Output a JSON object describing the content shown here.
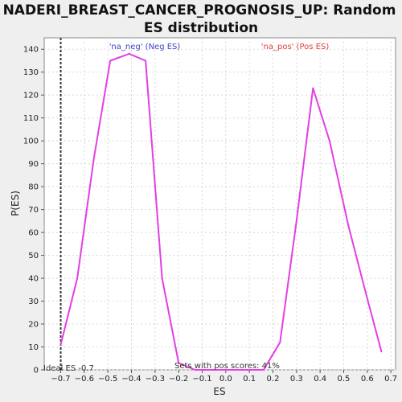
{
  "colors": {
    "series": "#e43ee4",
    "neg_label": "#4040d0",
    "pos_label": "#e04040",
    "marker": "#333333",
    "background": "#efefef",
    "plot_bg": "#ffffff"
  },
  "chart_data": {
    "type": "line",
    "title_lines": [
      "NADERI_BREAST_CANCER_PROGNOSIS_UP: Random",
      "ES distribution"
    ],
    "xlabel": "ES",
    "ylabel": "P(ES)",
    "xlim": [
      -0.77,
      0.72
    ],
    "ylim": [
      0,
      145
    ],
    "grid": true,
    "x_ticks": [
      -0.7,
      -0.6,
      -0.5,
      -0.4,
      -0.3,
      -0.2,
      -0.1,
      0.0,
      0.1,
      0.2,
      0.3,
      0.4,
      0.5,
      0.6,
      0.7
    ],
    "x_tick_labels": [
      "-0.7",
      "-0.6",
      "-0.5",
      "-0.4",
      "-0.3",
      "-0.2",
      "-0.1",
      "0.0",
      "0.1",
      "0.2",
      "0.3",
      "0.4",
      "0.5",
      "0.6",
      "0.7"
    ],
    "y_ticks": [
      0,
      10,
      20,
      30,
      40,
      50,
      60,
      70,
      80,
      90,
      100,
      110,
      120,
      130,
      140
    ],
    "y_tick_labels": [
      "0",
      "10",
      "20",
      "30",
      "40",
      "50",
      "60",
      "70",
      "80",
      "90",
      "100",
      "110",
      "120",
      "130",
      "140"
    ],
    "series": [
      {
        "x": [
          -0.7,
          -0.63,
          -0.56,
          -0.49,
          -0.41,
          -0.34,
          -0.27,
          -0.2,
          -0.13,
          -0.06,
          0.01,
          0.08,
          0.16,
          0.23,
          0.3,
          0.37,
          0.44,
          0.52,
          0.59,
          0.66
        ],
        "y": [
          11,
          40,
          92,
          135,
          138,
          135,
          40,
          3,
          0,
          0,
          0,
          0,
          0,
          12,
          65,
          123,
          100,
          63,
          35,
          8
        ]
      }
    ],
    "ideal_es": -0.7,
    "annotations": {
      "neg_label": "'na_neg' (Neg ES)",
      "pos_label": "'na_pos' (Pos ES)",
      "ideal_es": "Ideal ES -0.7",
      "pos_scores": "Sets with pos scores: 41%"
    }
  }
}
